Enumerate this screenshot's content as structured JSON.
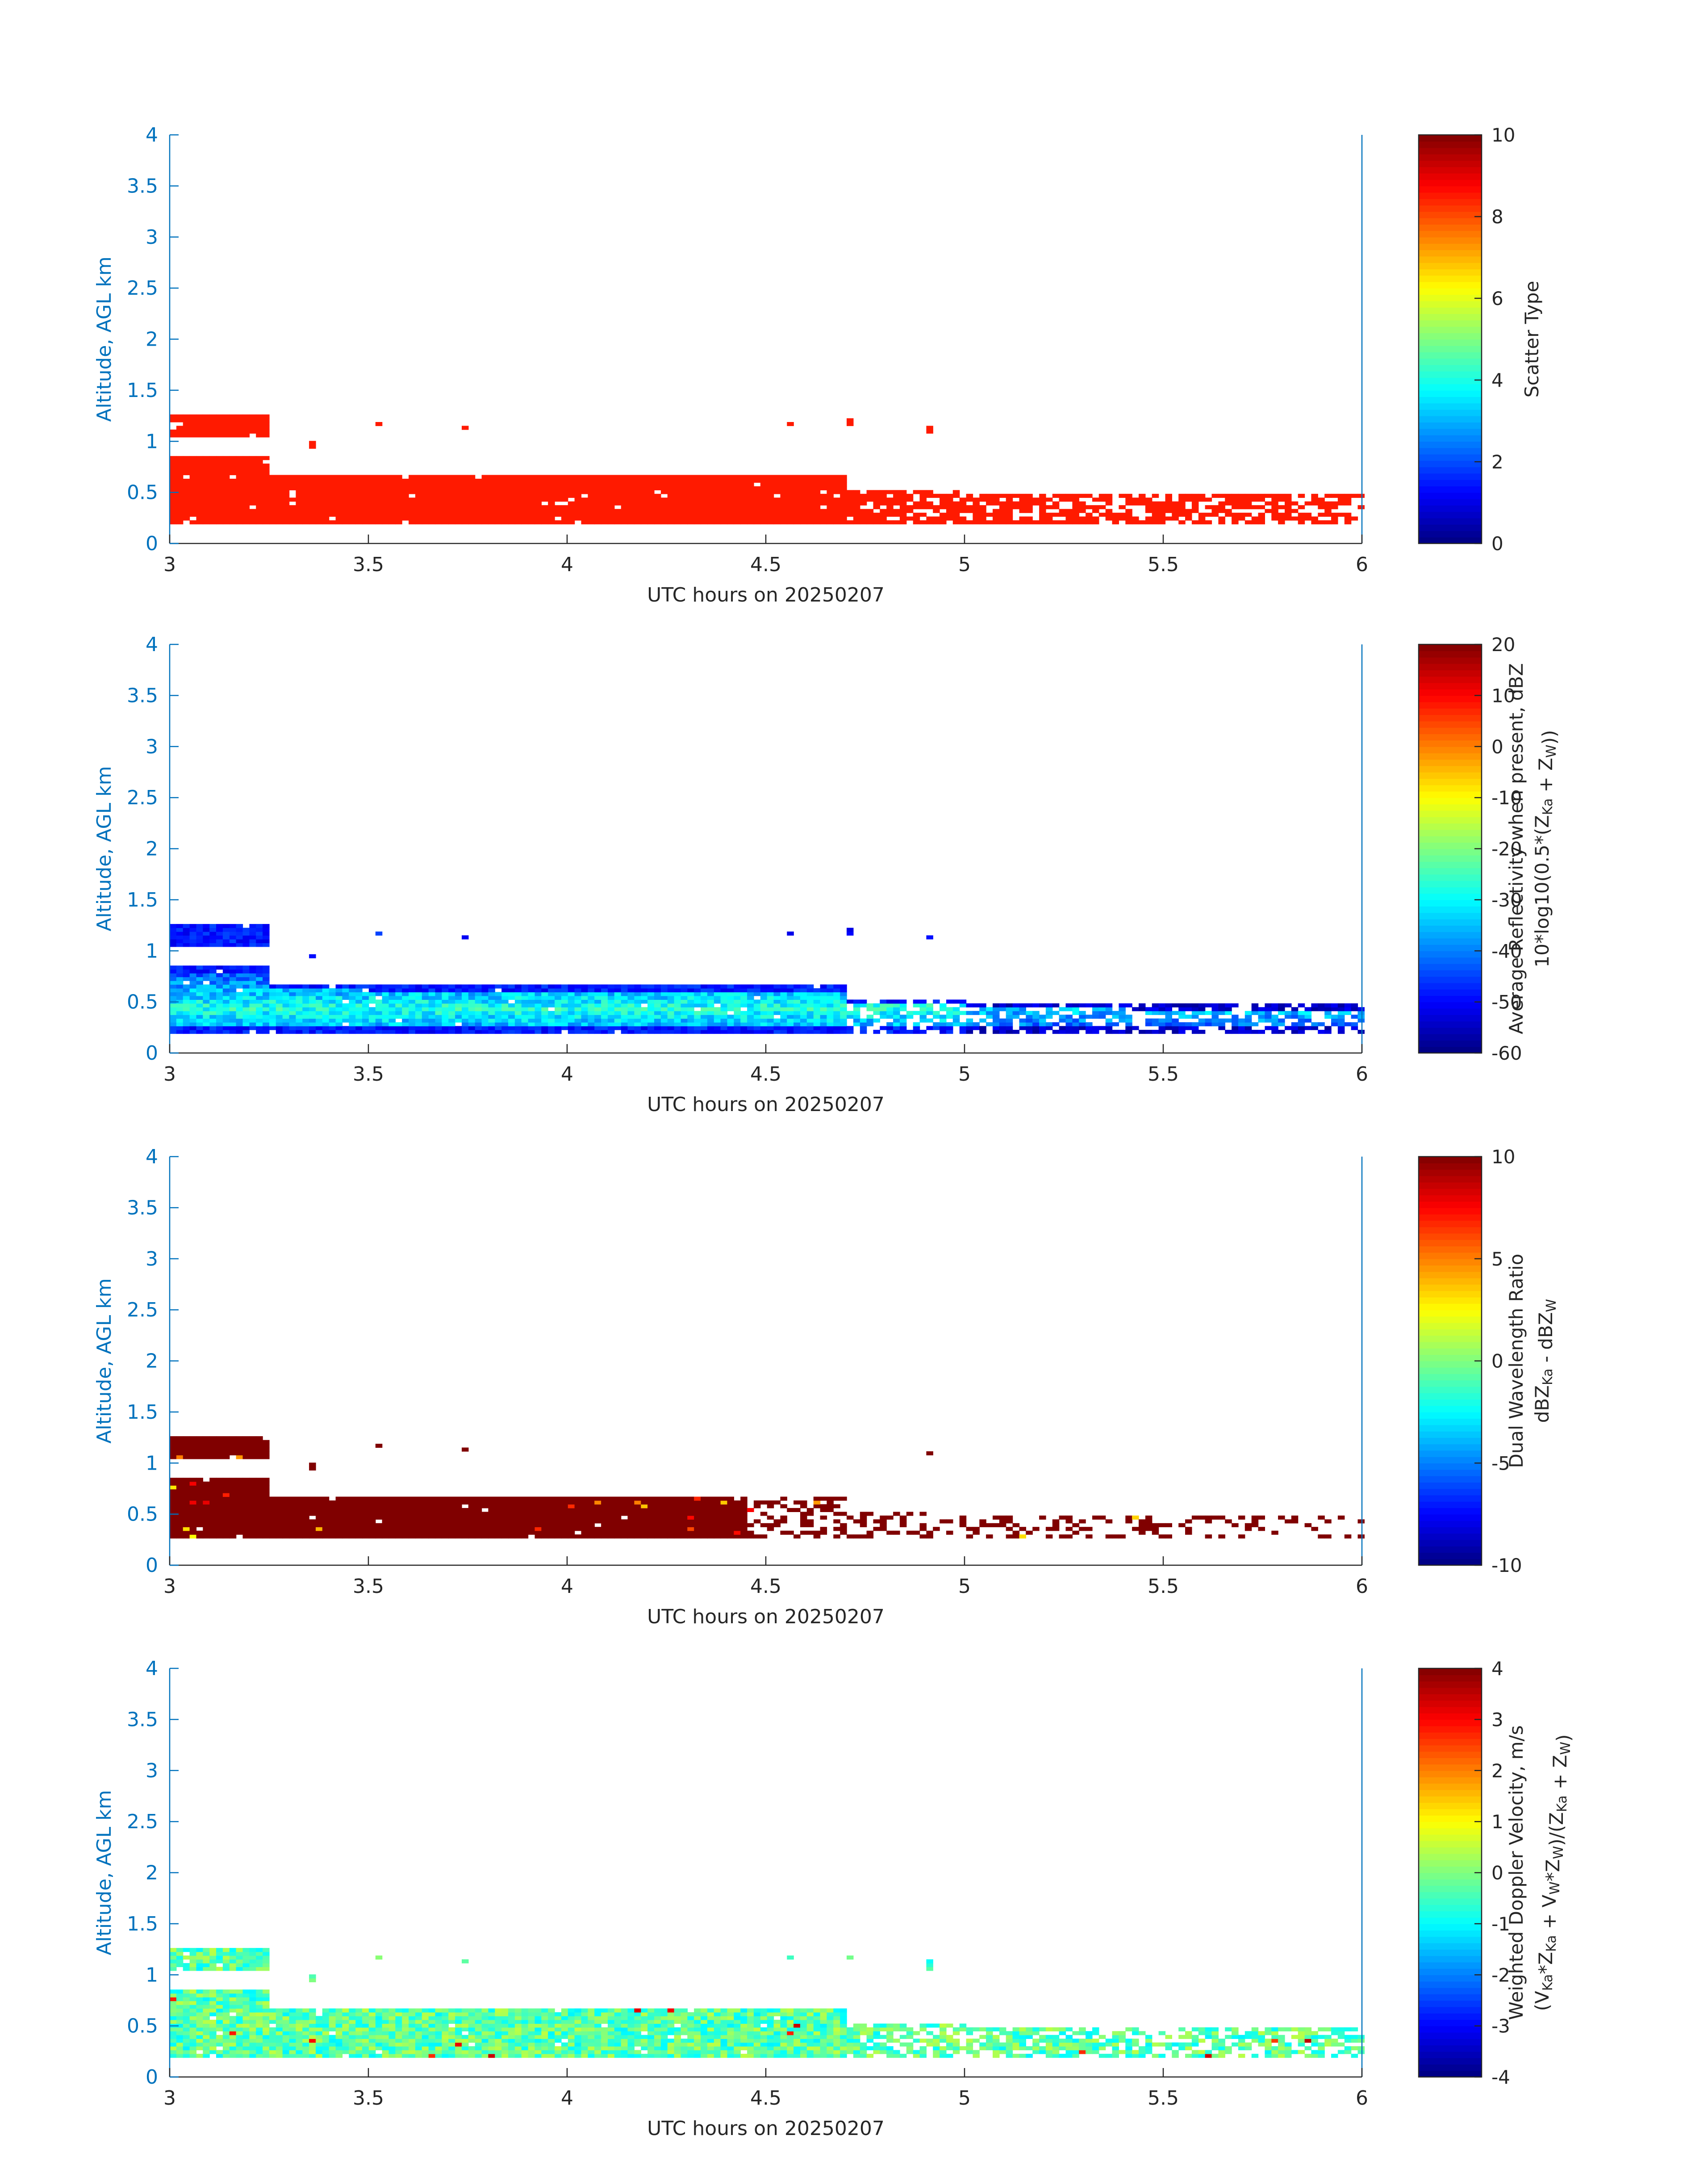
{
  "chart_data": [
    {
      "type": "heatmap",
      "xlabel": "UTC hours on 20250207",
      "ylabel": "Altitude, AGL km",
      "xlim": [
        3,
        6
      ],
      "ylim": [
        0,
        4
      ],
      "xticks": [
        "3",
        "3.5",
        "4",
        "4.5",
        "5",
        "5.5",
        "6"
      ],
      "yticks": [
        "0",
        "0.5",
        "1",
        "1.5",
        "2",
        "2.5",
        "3",
        "3.5",
        "4"
      ],
      "colorbar": {
        "label_lines": [
          "Scatter Type"
        ],
        "range": [
          0,
          10
        ],
        "ticks": [
          "0",
          "2",
          "4",
          "6",
          "8",
          "10"
        ],
        "tick_values": [
          0,
          2,
          4,
          6,
          8,
          10
        ],
        "colormap": "jet"
      },
      "field": "scatter_type",
      "typical_value": 8.5
    },
    {
      "type": "heatmap",
      "xlabel": "UTC hours on 20250207",
      "ylabel": "Altitude, AGL km",
      "xlim": [
        3,
        6
      ],
      "ylim": [
        0,
        4
      ],
      "xticks": [
        "3",
        "3.5",
        "4",
        "4.5",
        "5",
        "5.5",
        "6"
      ],
      "yticks": [
        "0",
        "0.5",
        "1",
        "1.5",
        "2",
        "2.5",
        "3",
        "3.5",
        "4"
      ],
      "colorbar": {
        "label_lines": [
          "Average Reflectivity when present, dBZ",
          "10*log10(0.5*(Z_Ka + Z_W))"
        ],
        "range": [
          -60,
          20
        ],
        "ticks": [
          "-60",
          "-50",
          "-40",
          "-30",
          "-20",
          "-10",
          "0",
          "10",
          "20"
        ],
        "tick_values": [
          -60,
          -50,
          -40,
          -30,
          -20,
          -10,
          0,
          10,
          20
        ],
        "colormap": "jet"
      },
      "field": "reflectivity",
      "typical_value": -35
    },
    {
      "type": "heatmap",
      "xlabel": "UTC hours on 20250207",
      "ylabel": "Altitude, AGL km",
      "xlim": [
        3,
        6
      ],
      "ylim": [
        0,
        4
      ],
      "xticks": [
        "3",
        "3.5",
        "4",
        "4.5",
        "5",
        "5.5",
        "6"
      ],
      "yticks": [
        "0",
        "0.5",
        "1",
        "1.5",
        "2",
        "2.5",
        "3",
        "3.5",
        "4"
      ],
      "colorbar": {
        "label_lines": [
          "Dual Wavelength Ratio",
          "dBZ_Ka - dBZ_W"
        ],
        "range": [
          -10,
          10
        ],
        "ticks": [
          "-10",
          "-5",
          "0",
          "5",
          "10"
        ],
        "tick_values": [
          -10,
          -5,
          0,
          5,
          10
        ],
        "colormap": "jet"
      },
      "field": "dual_wavelength_ratio",
      "typical_value": 10
    },
    {
      "type": "heatmap",
      "xlabel": "UTC hours on 20250207",
      "ylabel": "Altitude, AGL km",
      "xlim": [
        3,
        6
      ],
      "ylim": [
        0,
        4
      ],
      "xticks": [
        "3",
        "3.5",
        "4",
        "4.5",
        "5",
        "5.5",
        "6"
      ],
      "yticks": [
        "0",
        "0.5",
        "1",
        "1.5",
        "2",
        "2.5",
        "3",
        "3.5",
        "4"
      ],
      "colorbar": {
        "label_lines": [
          "Weighted Doppler Velocity, m/s",
          "(V_Ka*Z_Ka + V_W*Z_W)/(Z_Ka + Z_W)"
        ],
        "range": [
          -4,
          4
        ],
        "ticks": [
          "-4",
          "-3",
          "-2",
          "-1",
          "0",
          "1",
          "2",
          "3",
          "4"
        ],
        "tick_values": [
          -4,
          -3,
          -2,
          -1,
          0,
          1,
          2,
          3,
          4
        ],
        "colormap": "jet"
      },
      "field": "doppler_velocity",
      "typical_value": -0.3
    }
  ]
}
